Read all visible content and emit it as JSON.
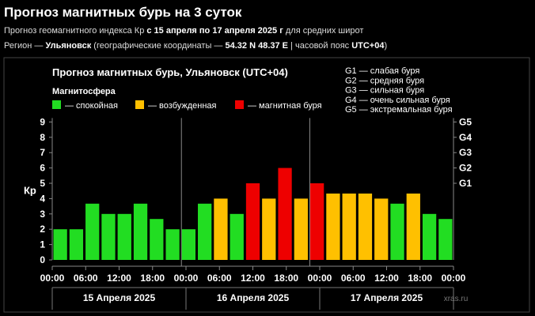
{
  "page": {
    "title": "Прогноз магнитных бурь на 3 суток",
    "line1_prefix": "Прогноз геомагнитного индекса Кр ",
    "line1_bold": "с 15 апреля по 17 апреля 2025 г",
    "line1_suffix": " для средних широт",
    "line2_prefix": "Регион — ",
    "line2_region": "Ульяновск",
    "line2_mid": " (географические координаты — ",
    "line2_coords": "54.32 N 48.37 E",
    "line2_mid2": " | часовой пояс ",
    "line2_tz": "UTC+04",
    "line2_suffix": ")"
  },
  "chart_data": {
    "type": "bar",
    "title": "Прогноз магнитных бурь, Ульяновск (UTC+04)",
    "ylabel": "Кр",
    "ylim": [
      0,
      9
    ],
    "yticks": [
      "0",
      "1",
      "2",
      "3",
      "4",
      "5",
      "6",
      "7",
      "8",
      "9"
    ],
    "right_ticks": [
      {
        "label": "G1",
        "value": 5
      },
      {
        "label": "G2",
        "value": 6
      },
      {
        "label": "G3",
        "value": 7
      },
      {
        "label": "G4",
        "value": 8
      },
      {
        "label": "G5",
        "value": 9
      }
    ],
    "storm_legend": [
      "G1 — слабая буря",
      "G2 — средняя буря",
      "G3 — сильная буря",
      "G4 — очень сильная буря",
      "G5 — экстремальная буря"
    ],
    "legend_title": "Магнитосфера",
    "legend": [
      {
        "name": "— спокойная",
        "color": "#22dd22"
      },
      {
        "name": "— возбужденная",
        "color": "#ffc000"
      },
      {
        "name": "— магнитная буря",
        "color": "#ee0000"
      }
    ],
    "values": [
      2,
      2,
      3.67,
      3,
      3,
      3.67,
      2.67,
      2,
      2,
      3.67,
      4,
      3,
      5,
      4,
      6,
      4,
      5,
      4.33,
      4.33,
      4.33,
      4,
      3.67,
      4.33,
      3,
      2.67
    ],
    "colors": [
      "#22dd22",
      "#22dd22",
      "#22dd22",
      "#22dd22",
      "#22dd22",
      "#22dd22",
      "#22dd22",
      "#22dd22",
      "#22dd22",
      "#22dd22",
      "#ffc000",
      "#22dd22",
      "#ee0000",
      "#ffc000",
      "#ee0000",
      "#ffc000",
      "#ee0000",
      "#ffc000",
      "#ffc000",
      "#ffc000",
      "#ffc000",
      "#22dd22",
      "#ffc000",
      "#22dd22",
      "#22dd22"
    ],
    "x_ticks": [
      "00:00",
      "06:00",
      "12:00",
      "18:00",
      "00:00",
      "06:00",
      "12:00",
      "18:00",
      "00:00",
      "06:00",
      "12:00",
      "18:00",
      "00:00"
    ],
    "days": [
      "15 Апреля 2025",
      "16 Апреля 2025",
      "17 Апреля 2025"
    ],
    "watermark": "xras.ru"
  }
}
